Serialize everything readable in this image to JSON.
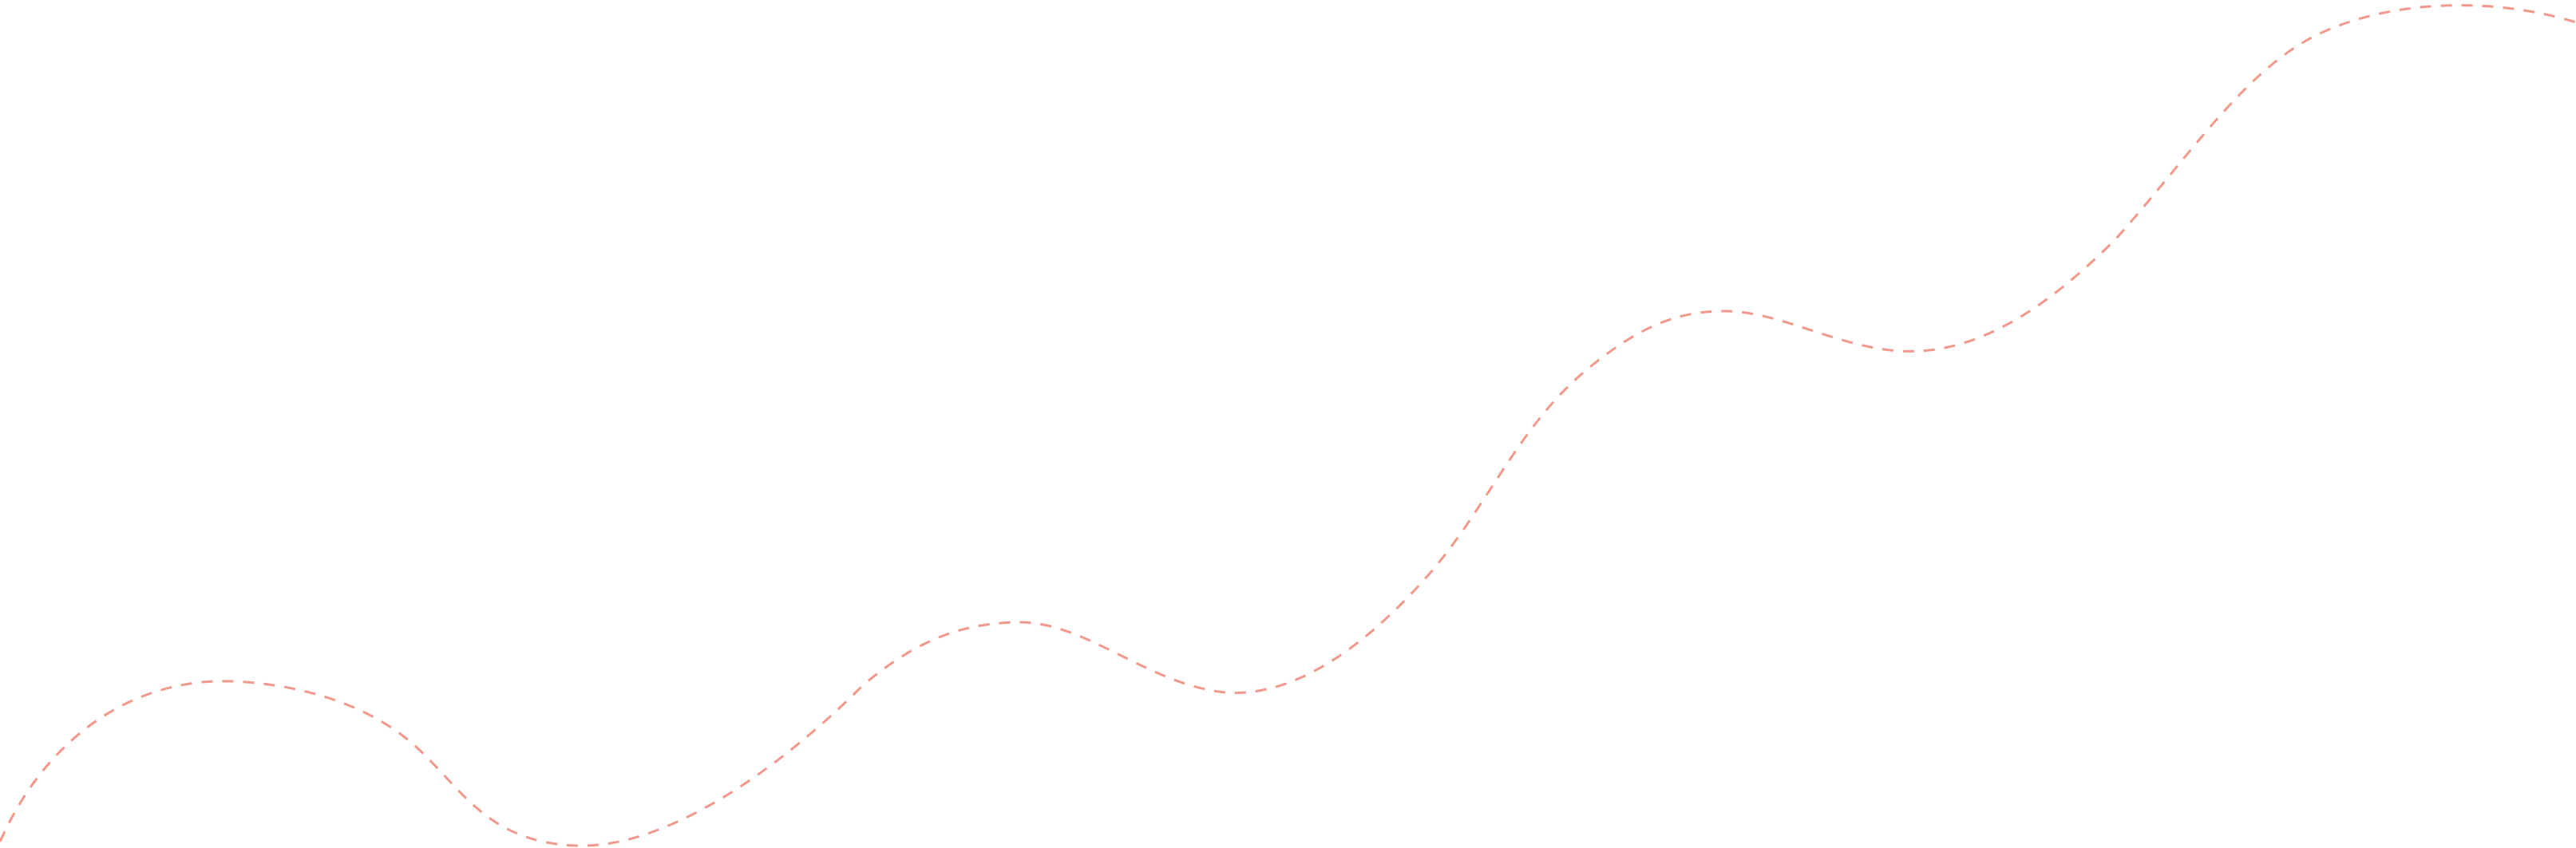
{
  "decoration": {
    "name": "dashed-wave-line",
    "stroke_color": "#F2988A",
    "line_style": "dashed"
  }
}
